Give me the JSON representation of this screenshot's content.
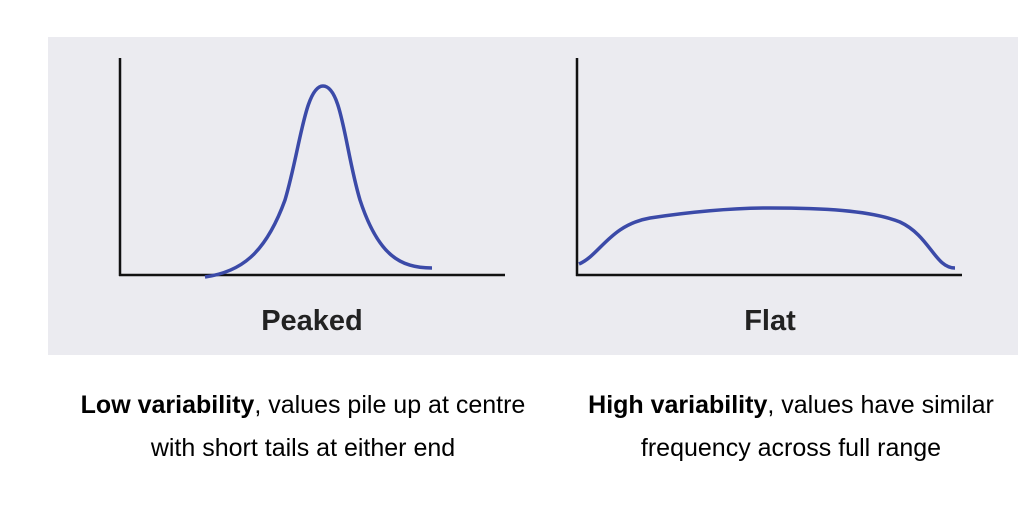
{
  "panels": [
    {
      "label": "Peaked",
      "caption_bold": "Low variability",
      "caption_rest": ", values pile up at centre with short tails at either end"
    },
    {
      "label": "Flat",
      "caption_bold": "High variability",
      "caption_rest": ", values have similar frequency across full range"
    }
  ]
}
